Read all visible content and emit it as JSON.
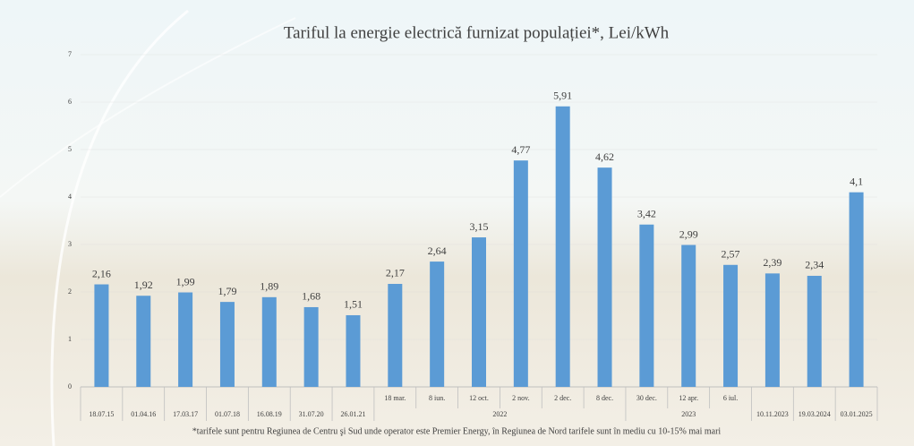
{
  "chart_data": {
    "type": "bar",
    "title": "Tariful la energie electrică furnizat populației*, Lei/kWh",
    "categories": [
      "18.07.15",
      "01.04.16",
      "17.03.17",
      "01.07.18",
      "16.08.19",
      "31.07.20",
      "26.01.21",
      "18 mar.",
      "8 iun.",
      "12 oct.",
      "2 nov.",
      "2 dec.",
      "8 dec.",
      "30 dec.",
      "12 apr.",
      "6 iul.",
      "10.11.2023",
      "19.03.2024",
      "03.01.2025"
    ],
    "values": [
      2.16,
      1.92,
      1.99,
      1.79,
      1.89,
      1.68,
      1.51,
      2.17,
      2.64,
      3.15,
      4.77,
      5.91,
      4.62,
      3.42,
      2.99,
      2.57,
      2.39,
      2.34,
      4.1
    ],
    "value_labels": [
      "2,16",
      "1,92",
      "1,99",
      "1,79",
      "1,89",
      "1,68",
      "1,51",
      "2,17",
      "2,64",
      "3,15",
      "4,77",
      "5,91",
      "4,62",
      "3,42",
      "2,99",
      "2,57",
      "2,39",
      "2,34",
      "4,1"
    ],
    "groups": [
      {
        "name": "2022",
        "first": 7,
        "last": 12
      },
      {
        "name": "2023",
        "first": 13,
        "last": 15
      }
    ],
    "color": "#5b9bd5",
    "ylim": [
      0,
      7
    ],
    "yticks": [
      0,
      1,
      2,
      3,
      4,
      5,
      6,
      7
    ],
    "grid": true,
    "footnote": "*tarifele sunt pentru Regiunea de Centru şi Sud unde operator este Premier Energy, în Regiunea de Nord tarifele sunt în mediu cu 10-15% mai mari"
  }
}
